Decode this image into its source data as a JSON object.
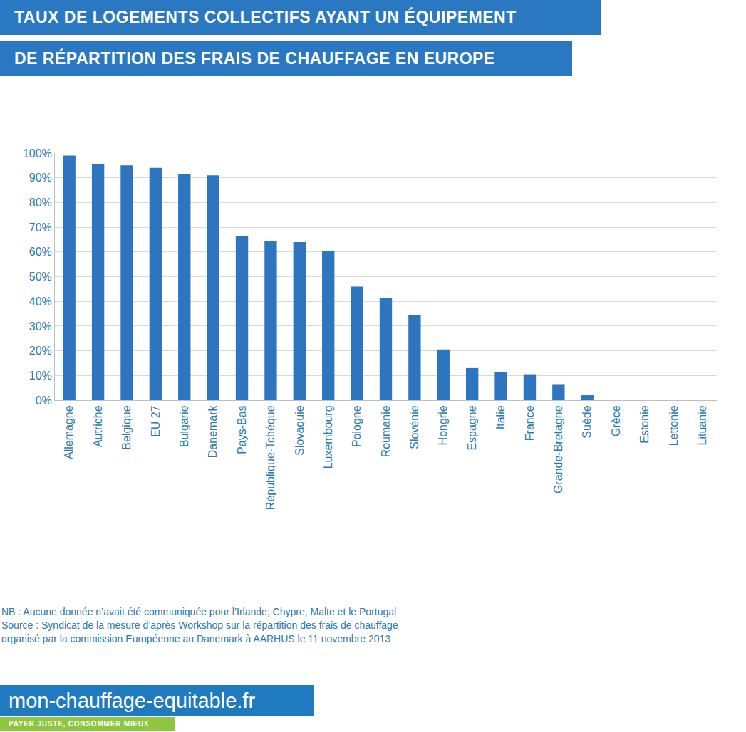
{
  "chart_data": {
    "type": "bar",
    "title": "TAUX DE LOGEMENTS COLLECTIFS AYANT UN ÉQUIPEMENT",
    "subtitle": "DE RÉPARTITION DES FRAIS DE CHAUFFAGE EN EUROPE",
    "categories": [
      "Allemagne",
      "Autriche",
      "Belgique",
      "EU 27",
      "Bulgarie",
      "Danemark",
      "Pays-Bas",
      "République-Tchèque",
      "Slovaquie",
      "Luxembourg",
      "Pologne",
      "Roumanie",
      "Slovénie",
      "Hongrie",
      "Espagne",
      "Italie",
      "France",
      "Grande-Bretagne",
      "Suède",
      "Grèce",
      "Estonie",
      "Lettonie",
      "Lituanie"
    ],
    "values": [
      99,
      95.5,
      95,
      94,
      91.5,
      91,
      66.5,
      64.5,
      64,
      60.5,
      46,
      41.5,
      34.5,
      20.5,
      13,
      11.5,
      10.5,
      6.5,
      2,
      0,
      0,
      0,
      0
    ],
    "color": "#2e75c0",
    "ylim": [
      0,
      100
    ],
    "yticks": [
      {
        "value": 0,
        "label": "0%"
      },
      {
        "value": 10,
        "label": "10%"
      },
      {
        "value": 20,
        "label": "20%"
      },
      {
        "value": 30,
        "label": "30%"
      },
      {
        "value": 40,
        "label": "40%"
      },
      {
        "value": 50,
        "label": "50%"
      },
      {
        "value": 60,
        "label": "60%"
      },
      {
        "value": 70,
        "label": "70%"
      },
      {
        "value": 80,
        "label": "80%"
      },
      {
        "value": 90,
        "label": "90%"
      },
      {
        "value": 100,
        "label": "100%"
      }
    ],
    "grid": true,
    "annotations": [
      "NB : Aucune donnée n’avait été communiquée pour l’Irlande, Chypre, Malte et le Portugal",
      "Source : Syndicat de la mesure d’après Workshop sur la répartition des frais de chauffage",
      "organisé par la commission Européenne au Danemark à AARHUS le 11 novembre 2013"
    ]
  },
  "footer": {
    "site": "mon-chauffage-equitable.fr",
    "tagline": "PAYER JUSTE, CONSOMMER MIEUX"
  }
}
